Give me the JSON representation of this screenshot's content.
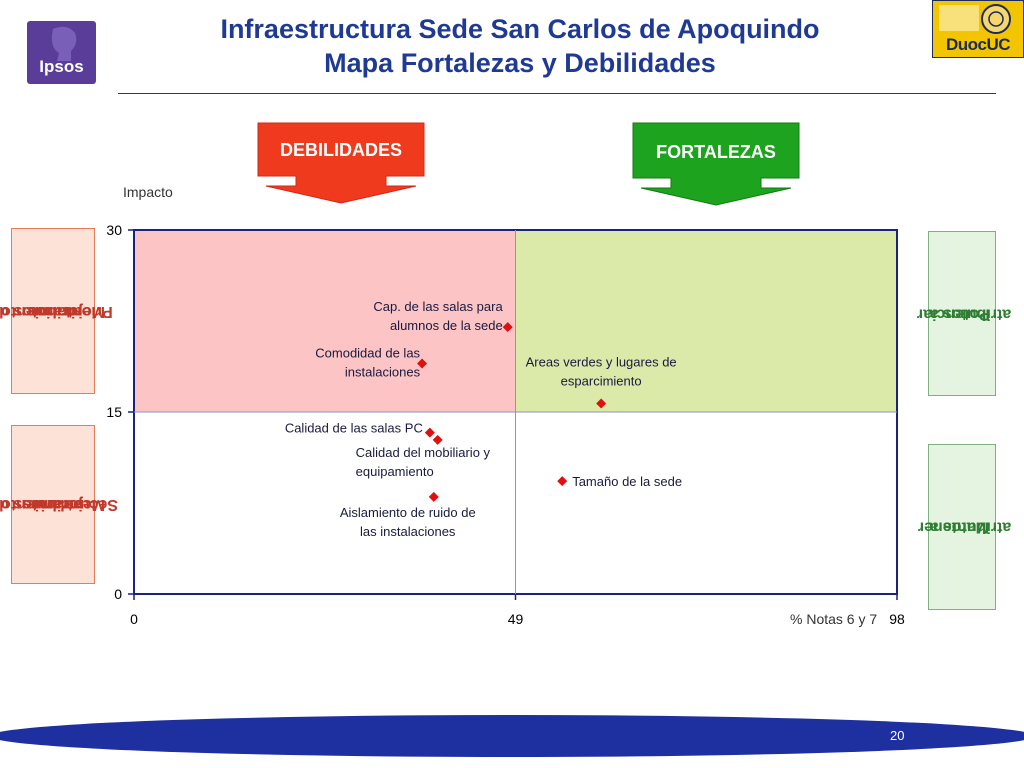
{
  "title_line1": "Infraestructura Sede San Carlos de Apoquindo",
  "title_line2": "Mapa Fortalezas y Debilidades",
  "logo_left": "Ipsos",
  "logo_right": "DuocUC",
  "arrows": {
    "left": "DEBILIDADES",
    "right": "FORTALEZAS"
  },
  "side_labels": {
    "top_left": [
      "atributos de",
      "Mejoramiento",
      "Prioritarios"
    ],
    "bottom_left": [
      "atributos de",
      "Mejoramiento",
      "Secundarios"
    ],
    "top_right": [
      "atributos a",
      "Potenciar"
    ],
    "bottom_right": [
      "atributos a",
      "Mantener"
    ]
  },
  "colors": {
    "title": "#1f3a93",
    "debilidades": "#f03a1e",
    "fortalezas": "#1ea31e",
    "quadrant_top_left": "#fcc4c4",
    "quadrant_top_right": "#dbeaa8",
    "point": "#e01010",
    "footer": "#1e2fa0"
  },
  "page_number": "20",
  "chart_data": {
    "type": "scatter",
    "ylabel": "Impacto",
    "xlabel": "% Notas 6 y 7",
    "xlim": [
      0,
      98
    ],
    "ylim": [
      0,
      30
    ],
    "x_ticks": [
      "0",
      "49",
      "98"
    ],
    "y_ticks": [
      "0",
      "15",
      "30"
    ],
    "x_divider": 49,
    "y_divider": 15,
    "points": [
      {
        "label_lines": [
          "Cap. de las salas para",
          "alumnos de la sede"
        ],
        "x": 48,
        "y": 22
      },
      {
        "label_lines": [
          "Comodidad de las",
          "instalaciones"
        ],
        "x": 37,
        "y": 19
      },
      {
        "label_lines": [
          "Areas verdes y lugares de",
          "esparcimiento"
        ],
        "x": 60,
        "y": 15.7
      },
      {
        "label_lines": [
          "Calidad de las salas PC"
        ],
        "x": 38,
        "y": 13.3
      },
      {
        "label_lines": [
          "Calidad del mobiliario y",
          "equipamiento"
        ],
        "x": 39,
        "y": 12.7
      },
      {
        "label_lines": [
          "Tamaño de la sede"
        ],
        "x": 55,
        "y": 9.3
      },
      {
        "label_lines": [
          "Aislamiento de ruido de",
          "las instalaciones"
        ],
        "x": 38.5,
        "y": 8
      }
    ]
  }
}
